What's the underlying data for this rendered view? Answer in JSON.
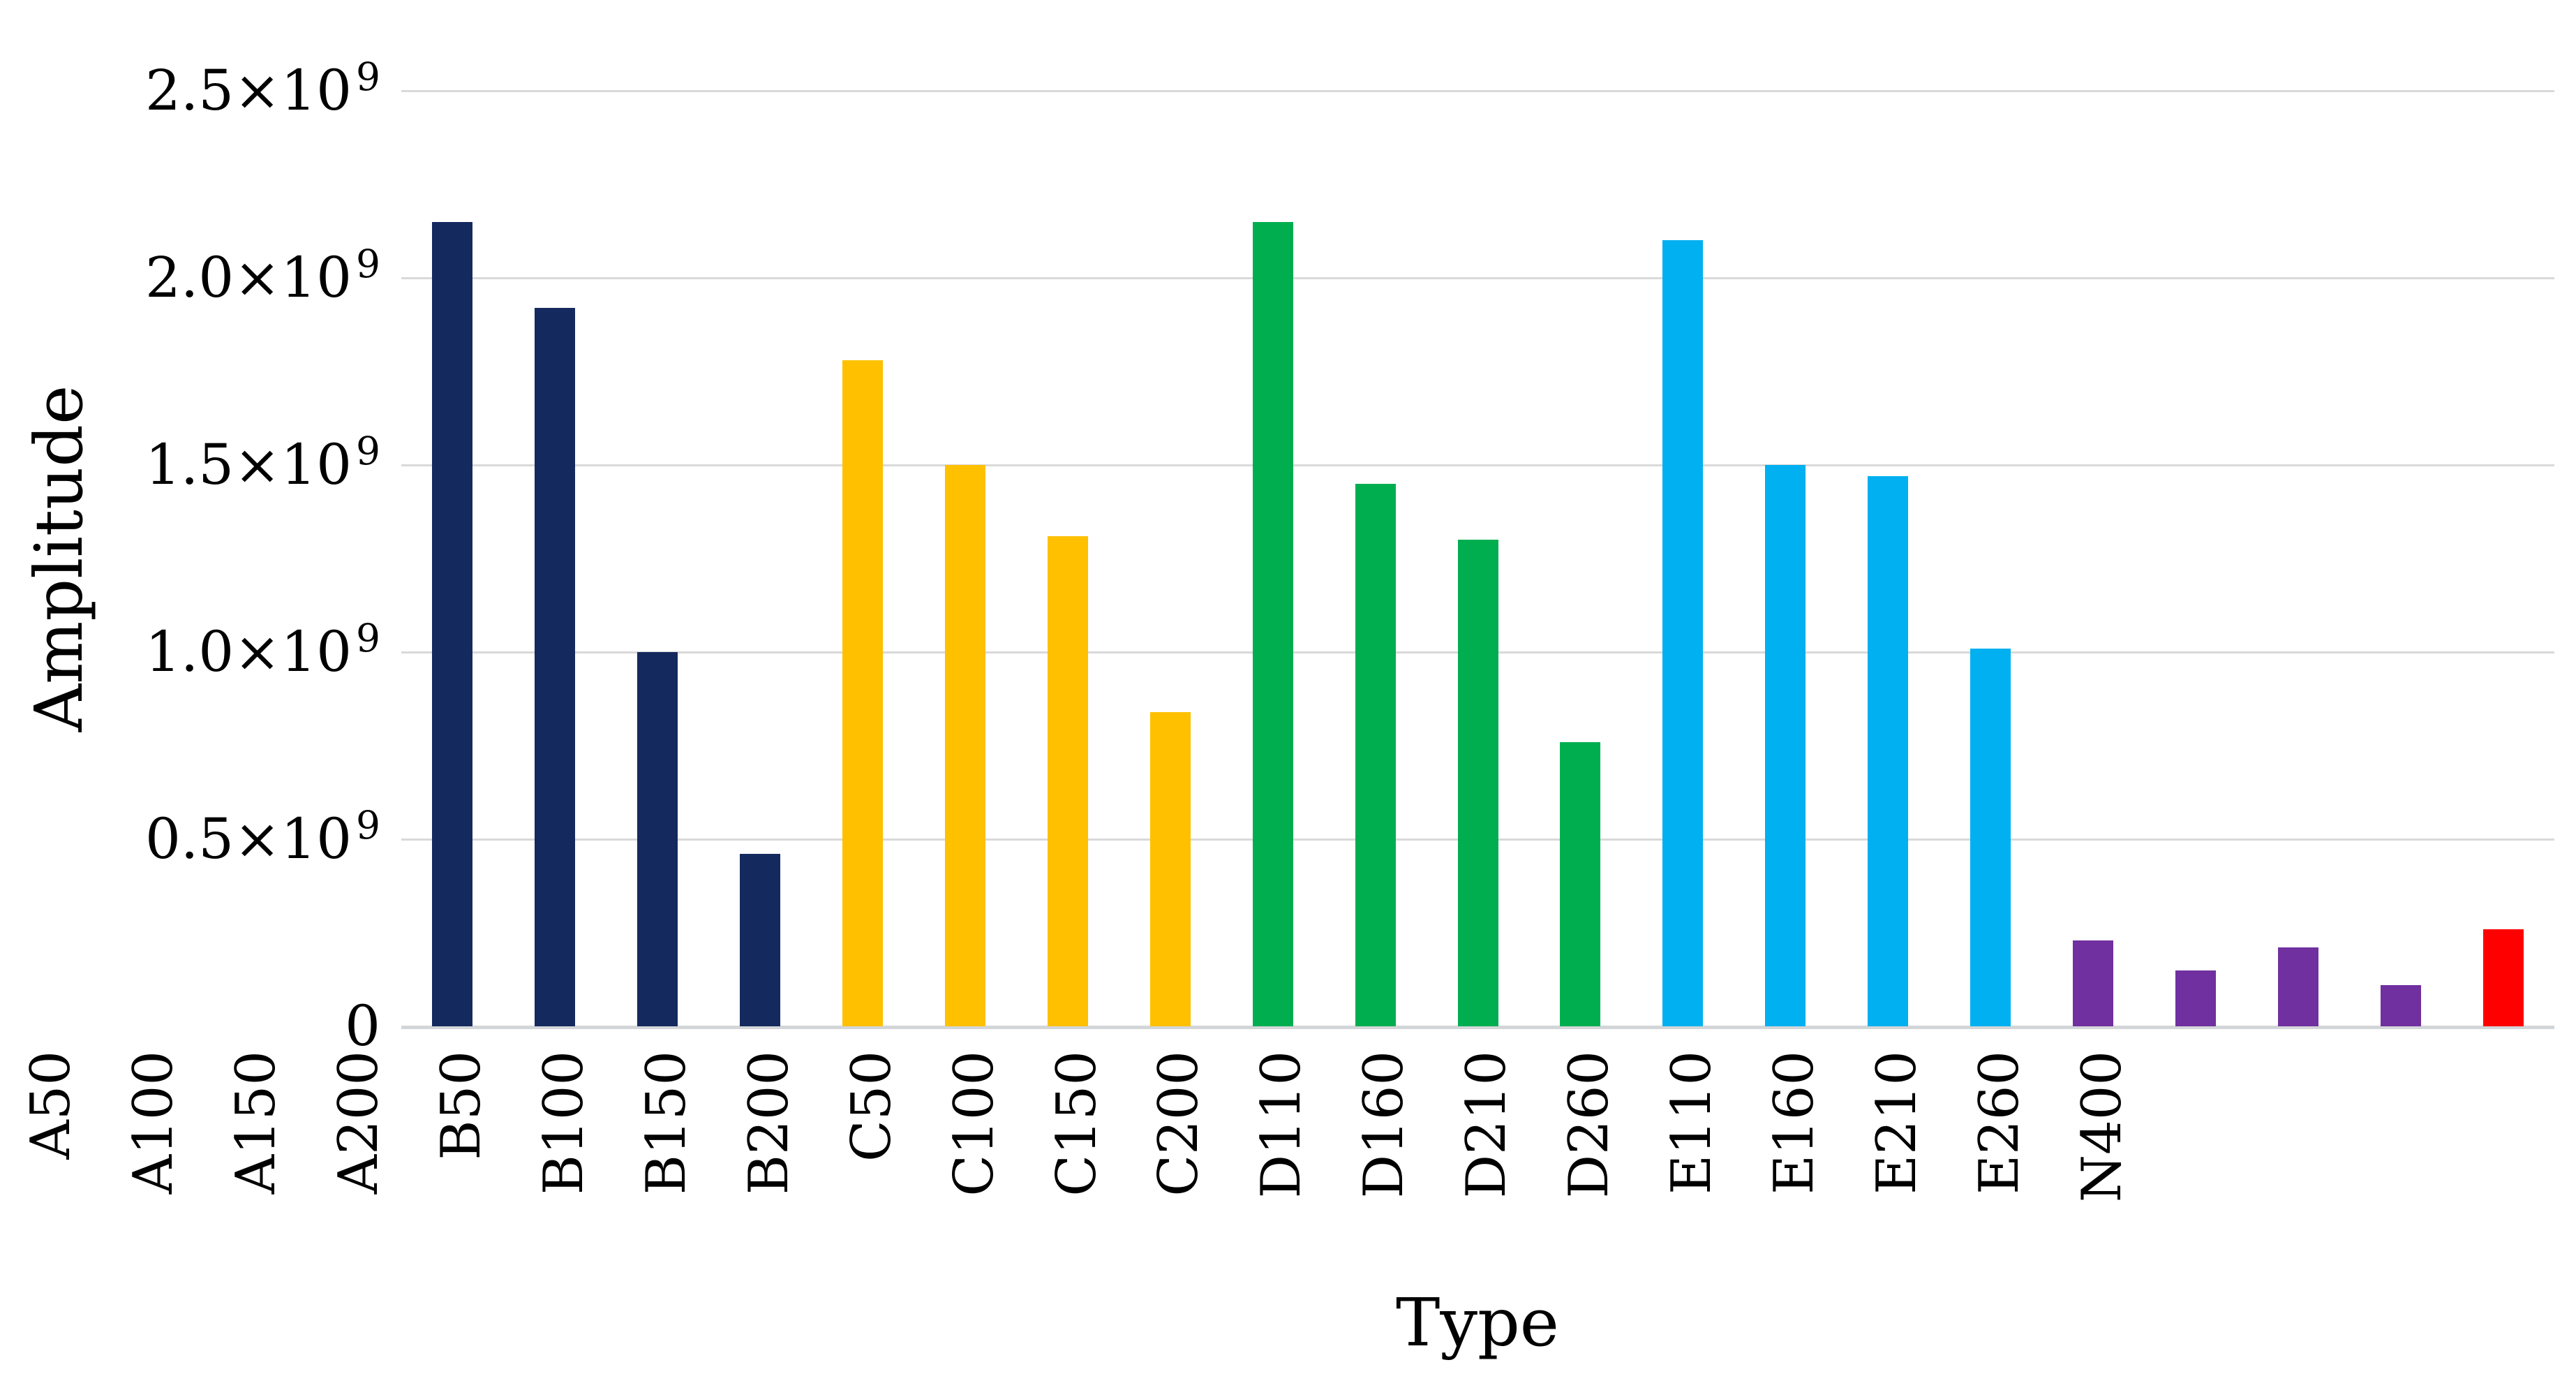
{
  "chart_data": {
    "type": "bar",
    "title": "",
    "xlabel": "Type",
    "ylabel": "Amplitude",
    "ylim": [
      0,
      2500000000
    ],
    "ytick_interval": 500000000,
    "ytick_labels": [
      {
        "text": "0",
        "sup": ""
      },
      {
        "text": "0.5×10",
        "sup": "9"
      },
      {
        "text": "1.0×10",
        "sup": "9"
      },
      {
        "text": "1.5×10",
        "sup": "9"
      },
      {
        "text": "2.0×10",
        "sup": "9"
      },
      {
        "text": "2.5×10",
        "sup": "9"
      }
    ],
    "grid": "horizontal",
    "legend": "none",
    "background": "#ffffff",
    "gridline_color": "#d9d9d9",
    "categories": [
      "A50",
      "A100",
      "A150",
      "A200",
      "B50",
      "B100",
      "B150",
      "B200",
      "C50",
      "C100",
      "C150",
      "C200",
      "D110",
      "D160",
      "D210",
      "D260",
      "E110",
      "E160",
      "E210",
      "E260",
      "N400"
    ],
    "values": [
      2150000000,
      1920000000,
      1000000000,
      460000000,
      1780000000,
      1500000000,
      1310000000,
      840000000,
      2150000000,
      1450000000,
      1300000000,
      760000000,
      2100000000,
      1500000000,
      1470000000,
      1010000000,
      230000000,
      150000000,
      210000000,
      110000000,
      260000000
    ],
    "colors": [
      "#142a5e",
      "#142a5e",
      "#142a5e",
      "#142a5e",
      "#ffc000",
      "#ffc000",
      "#ffc000",
      "#ffc000",
      "#00ae50",
      "#00ae50",
      "#00ae50",
      "#00ae50",
      "#00b0f0",
      "#00b0f0",
      "#00b0f0",
      "#00b0f0",
      "#7030a0",
      "#7030a0",
      "#7030a0",
      "#7030a0",
      "#ff0000"
    ],
    "color_groups": {
      "A": "#142a5e",
      "B": "#ffc000",
      "C": "#00ae50",
      "D": "#00b0f0",
      "E": "#7030a0",
      "N": "#ff0000"
    }
  }
}
